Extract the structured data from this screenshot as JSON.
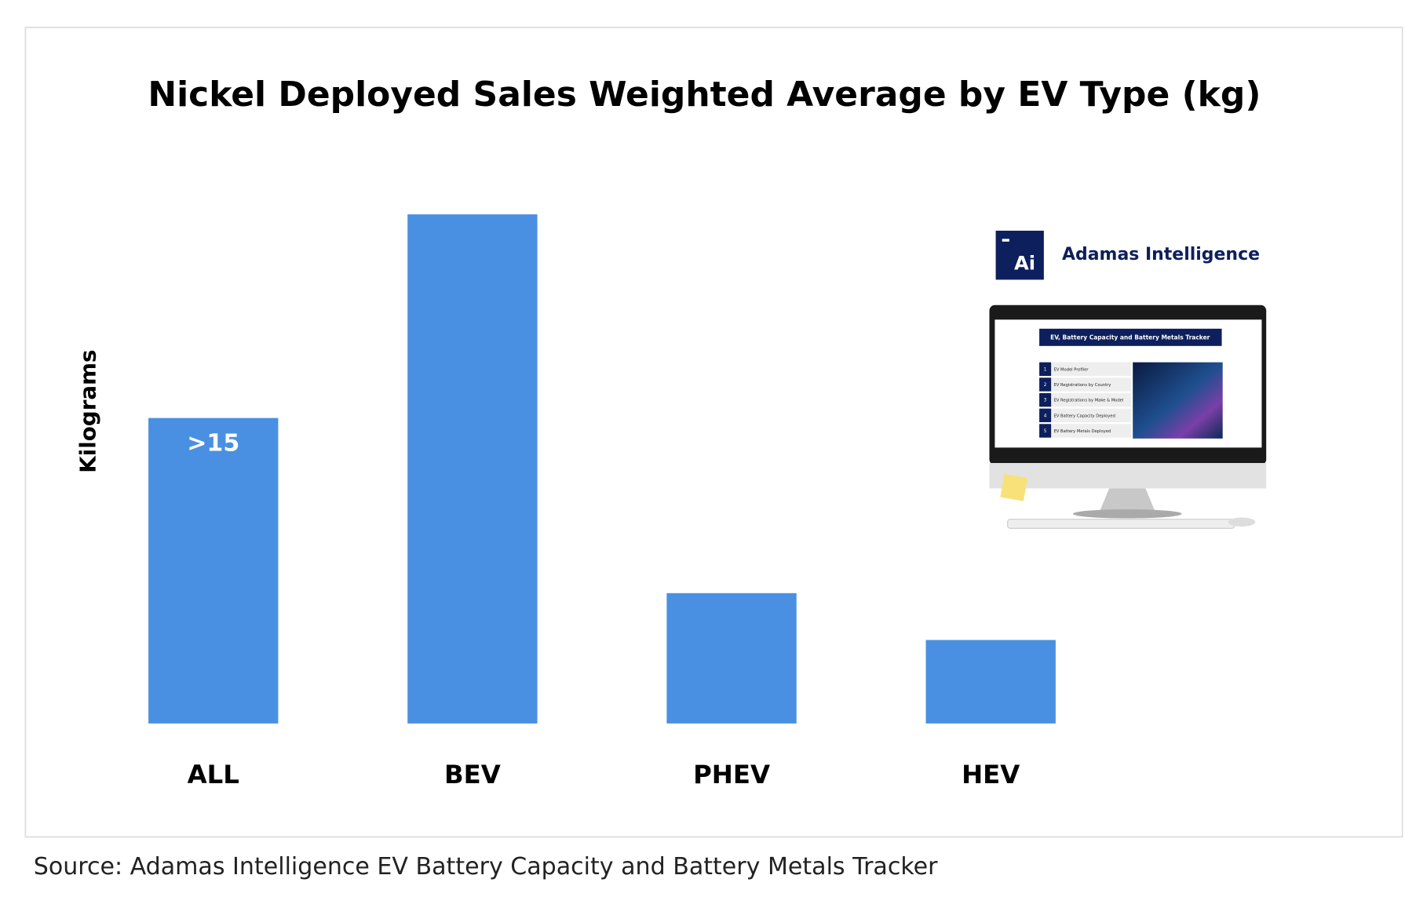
{
  "chart_data": {
    "type": "bar",
    "title": "Nickel Deployed Sales Weighted Average by EV Type (kg)",
    "ylabel": "Kilograms",
    "categories": [
      "ALL",
      "BEV",
      "PHEV",
      "HEV"
    ],
    "values": [
      15,
      25,
      6.4,
      4.1
    ],
    "value_labels": [
      ">15",
      null,
      null,
      null
    ],
    "color": "#4a90e2",
    "source": "Source: Adamas Intelligence EV Battery Capacity and Battery Metals Tracker"
  },
  "advert": {
    "logo": "Ai",
    "brand": "Adamas Intelligence",
    "screen_title": "EV, Battery Capacity and Battery Metals Tracker",
    "items": [
      {
        "number": "1",
        "label": "EV Model Profiler"
      },
      {
        "number": "2",
        "label": "EV Registrations by Country"
      },
      {
        "number": "3",
        "label": "EV Registrations by Make & Model"
      },
      {
        "number": "4",
        "label": "EV Battery Capacity Deployed"
      },
      {
        "number": "5",
        "label": "EV Battery Metals Deployed"
      }
    ]
  }
}
